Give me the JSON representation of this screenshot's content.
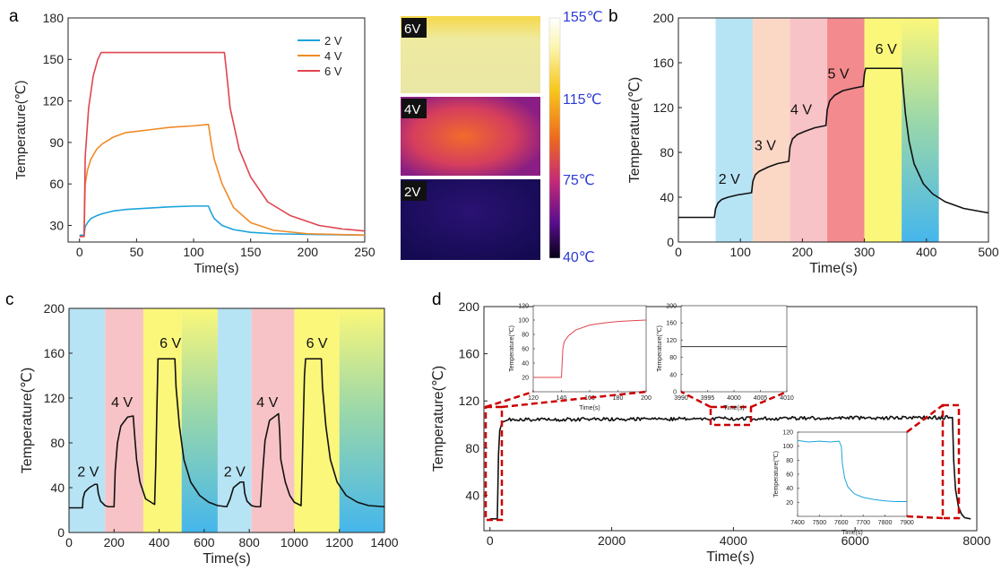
{
  "colors": {
    "v2": "#1ba3dc",
    "v4": "#f08a26",
    "v6": "#e0454f",
    "black": "#111111",
    "dashed_box": "#cc0000",
    "blue_label": "#2b3bd6",
    "band_blue": "#b7e4f5",
    "band_peach": "#fbd7c6",
    "band_pink": "#f8c3c6",
    "band_red": "#f28a8e",
    "band_yellow": "#fbf77a",
    "band_teal": "#4fb9ec"
  },
  "panel_labels": {
    "a": "a",
    "b": "b",
    "c": "c",
    "d": "d"
  },
  "thermal": {
    "labels": [
      "6V",
      "4V",
      "2V"
    ],
    "scale_labels": [
      "155℃",
      "115℃",
      "75℃",
      "40℃"
    ]
  },
  "chart_data": [
    {
      "id": "a",
      "type": "line",
      "title": "",
      "xlabel": "Time(s)",
      "ylabel": "Temperature(℃)",
      "xlim": [
        -10,
        250
      ],
      "ylim": [
        18,
        180
      ],
      "xticks": [
        0,
        50,
        100,
        150,
        200,
        250
      ],
      "yticks": [
        30,
        60,
        90,
        120,
        150,
        180
      ],
      "legend": "top-right",
      "series": [
        {
          "name": "2 V",
          "color": "#1ba3dc",
          "x": [
            0,
            4,
            5,
            7,
            10,
            15,
            20,
            30,
            40,
            60,
            80,
            100,
            113,
            115,
            118,
            125,
            135,
            150,
            170,
            200,
            250
          ],
          "y": [
            23,
            23,
            29,
            32,
            35,
            37,
            38.5,
            40.5,
            41.5,
            42.5,
            43.5,
            44,
            44,
            40,
            35,
            30,
            27,
            25,
            24,
            23.5,
            23
          ]
        },
        {
          "name": "4 V",
          "color": "#f08a26",
          "x": [
            0,
            4,
            5,
            7,
            10,
            15,
            20,
            30,
            40,
            60,
            80,
            100,
            113,
            115,
            118,
            125,
            135,
            150,
            170,
            200,
            250
          ],
          "y": [
            22,
            22,
            60,
            70,
            78,
            85,
            89,
            94,
            97,
            99,
            101,
            102,
            103,
            92,
            78,
            60,
            43,
            32,
            26.5,
            24,
            23
          ]
        },
        {
          "name": "6 V",
          "color": "#e0454f",
          "x": [
            0,
            4,
            5,
            8,
            12,
            16,
            19,
            127,
            129,
            132,
            140,
            150,
            165,
            185,
            210,
            230,
            250
          ],
          "y": [
            22,
            22,
            80,
            115,
            138,
            150,
            155,
            155,
            140,
            115,
            85,
            65,
            47,
            37,
            30,
            27.5,
            26
          ]
        }
      ]
    },
    {
      "id": "b",
      "type": "line",
      "xlabel": "Time(s)",
      "ylabel": "Temperature(℃)",
      "xlim": [
        0,
        500
      ],
      "ylim": [
        0,
        200
      ],
      "xticks": [
        0,
        100,
        200,
        300,
        400,
        500
      ],
      "yticks": [
        0,
        40,
        80,
        120,
        160,
        200
      ],
      "bands": [
        {
          "from": 60,
          "to": 120,
          "color": "band_blue"
        },
        {
          "from": 120,
          "to": 180,
          "color": "band_peach"
        },
        {
          "from": 180,
          "to": 240,
          "color": "band_pink"
        },
        {
          "from": 240,
          "to": 300,
          "color": "band_red"
        },
        {
          "from": 300,
          "to": 360,
          "color": "band_yellow"
        },
        {
          "from": 360,
          "to": 420,
          "color": "band_yellow_teal"
        }
      ],
      "annotations": [
        {
          "text": "2 V",
          "x": 82,
          "y": 52
        },
        {
          "text": "3 V",
          "x": 140,
          "y": 82
        },
        {
          "text": "4 V",
          "x": 198,
          "y": 114
        },
        {
          "text": "5 V",
          "x": 258,
          "y": 146
        },
        {
          "text": "6 V",
          "x": 335,
          "y": 168
        }
      ],
      "series": [
        {
          "name": "temperature",
          "color": "#111111",
          "x": [
            0,
            58,
            60,
            64,
            70,
            80,
            95,
            118,
            120,
            124,
            130,
            145,
            160,
            178,
            180,
            184,
            192,
            205,
            220,
            238,
            240,
            244,
            252,
            265,
            280,
            298,
            300,
            302,
            360,
            362,
            366,
            372,
            380,
            395,
            410,
            430,
            460,
            500
          ],
          "y": [
            22,
            22,
            30,
            35,
            38,
            40,
            42,
            44,
            54,
            60,
            63,
            67,
            70,
            72,
            85,
            92,
            96,
            99,
            102,
            104,
            118,
            126,
            131,
            135,
            137,
            139,
            150,
            155,
            155,
            140,
            115,
            90,
            70,
            52,
            43,
            36,
            30,
            26
          ]
        }
      ]
    },
    {
      "id": "c",
      "type": "line",
      "xlabel": "Time(s)",
      "ylabel": "Temperature(℃)",
      "xlim": [
        0,
        1400
      ],
      "ylim": [
        0,
        200
      ],
      "xticks": [
        0,
        200,
        400,
        600,
        800,
        1000,
        1200,
        1400
      ],
      "yticks": [
        0,
        40,
        80,
        120,
        160,
        200
      ],
      "bands": [
        {
          "from": 0,
          "to": 160,
          "color": "band_blue"
        },
        {
          "from": 160,
          "to": 330,
          "color": "band_pink"
        },
        {
          "from": 330,
          "to": 500,
          "color": "band_yellow"
        },
        {
          "from": 500,
          "to": 660,
          "color": "band_yellow_teal"
        },
        {
          "from": 660,
          "to": 810,
          "color": "band_blue"
        },
        {
          "from": 810,
          "to": 1000,
          "color": "band_pink"
        },
        {
          "from": 1000,
          "to": 1200,
          "color": "band_yellow"
        },
        {
          "from": 1200,
          "to": 1400,
          "color": "band_yellow_teal"
        }
      ],
      "annotations": [
        {
          "text": "2 V",
          "x": 85,
          "y": 50
        },
        {
          "text": "4 V",
          "x": 235,
          "y": 112
        },
        {
          "text": "6 V",
          "x": 450,
          "y": 165
        },
        {
          "text": "2 V",
          "x": 735,
          "y": 50
        },
        {
          "text": "4 V",
          "x": 880,
          "y": 112
        },
        {
          "text": "6 V",
          "x": 1100,
          "y": 165
        }
      ],
      "series": [
        {
          "name": "temperature",
          "color": "#111111",
          "x": [
            0,
            60,
            62,
            70,
            90,
            115,
            125,
            130,
            140,
            160,
            175,
            200,
            205,
            215,
            230,
            260,
            285,
            290,
            300,
            315,
            340,
            380,
            385,
            390,
            395,
            470,
            475,
            490,
            510,
            540,
            580,
            620,
            660,
            700,
            715,
            730,
            760,
            775,
            780,
            790,
            810,
            830,
            850,
            860,
            870,
            890,
            930,
            935,
            940,
            960,
            980,
            1000,
            1030,
            1035,
            1045,
            1050,
            1120,
            1125,
            1140,
            1160,
            1190,
            1230,
            1280,
            1330,
            1400
          ],
          "y": [
            22,
            22,
            30,
            36,
            40,
            43,
            43,
            35,
            28,
            24,
            23,
            23,
            55,
            80,
            95,
            103,
            104,
            90,
            65,
            45,
            30,
            25,
            60,
            110,
            155,
            155,
            130,
            95,
            65,
            45,
            33,
            27,
            24,
            23,
            30,
            40,
            45,
            45,
            35,
            28,
            24,
            23,
            23,
            55,
            82,
            100,
            106,
            90,
            65,
            45,
            33,
            27,
            24,
            60,
            140,
            155,
            155,
            130,
            95,
            65,
            45,
            33,
            27,
            24,
            23
          ]
        }
      ]
    },
    {
      "id": "d",
      "type": "line",
      "xlabel": "Time(s)",
      "ylabel": "Temperature(℃)",
      "xlim": [
        -100,
        8000
      ],
      "ylim": [
        10,
        200
      ],
      "xticks": [
        0,
        2000,
        4000,
        6000,
        8000
      ],
      "yticks": [
        40,
        80,
        120,
        160,
        200
      ],
      "series": [
        {
          "name": "temperature",
          "color": "#111111",
          "note": "rises from 20 to ~105 at ~140 s, holds 101-108 (noisy) until ~7600 s, falls to ~20",
          "x": [
            0,
            120,
            140,
            160,
            200,
            300,
            7600,
            7620,
            7650,
            7700,
            7750,
            7800,
            7900
          ],
          "y": [
            20,
            20,
            75,
            95,
            102,
            104,
            106,
            70,
            45,
            30,
            24,
            21,
            20
          ]
        }
      ],
      "insets": [
        {
          "id": "d1",
          "xlabel": "Time(s)",
          "ylabel": "Temperature(℃)",
          "color": "#e0454f",
          "xlim": [
            120,
            200
          ],
          "ylim": [
            0,
            120
          ],
          "xticks": [
            120,
            140,
            160,
            180,
            200
          ],
          "xtick_labels": [
            "120",
            "140",
            "160",
            "180",
            "200"
          ],
          "yticks": [
            20,
            40,
            60,
            80,
            100,
            120
          ],
          "x": [
            120,
            140,
            141,
            142,
            145,
            150,
            160,
            170,
            180,
            190,
            200
          ],
          "y": [
            20,
            20,
            60,
            70,
            78,
            86,
            93,
            96,
            98,
            99,
            100
          ]
        },
        {
          "id": "d2",
          "xlabel": "Time(s)",
          "ylabel": "Temperature(℃)",
          "color": "#333333",
          "xlim": [
            3990,
            4010
          ],
          "ylim": [
            0,
            200
          ],
          "xticks": [
            3990,
            3995,
            4000,
            4005,
            4010
          ],
          "xtick_labels": [
            "3990",
            "3995",
            "4000",
            "4005",
            "4010"
          ],
          "yticks": [
            0,
            40,
            80,
            120,
            160,
            200
          ],
          "x": [
            3990,
            4010
          ],
          "y": [
            105,
            105
          ]
        },
        {
          "id": "d3",
          "xlabel": "Time(s)",
          "ylabel": "Temperature(℃)",
          "color": "#1ba3dc",
          "xlim": [
            7400,
            7900
          ],
          "ylim": [
            0,
            120
          ],
          "xticks": [
            7400,
            7500,
            7600,
            7700,
            7800,
            7900
          ],
          "xtick_labels": [
            "7400",
            "7500",
            "7600",
            "7700",
            "7800",
            "7900"
          ],
          "yticks": [
            20,
            40,
            60,
            80,
            100,
            120
          ],
          "x": [
            7400,
            7450,
            7500,
            7550,
            7590,
            7600,
            7605,
            7615,
            7630,
            7660,
            7700,
            7750,
            7800,
            7850,
            7900
          ],
          "y": [
            108,
            106,
            107,
            106,
            107,
            100,
            75,
            55,
            42,
            32,
            27,
            24,
            22,
            21,
            21
          ]
        }
      ]
    }
  ]
}
